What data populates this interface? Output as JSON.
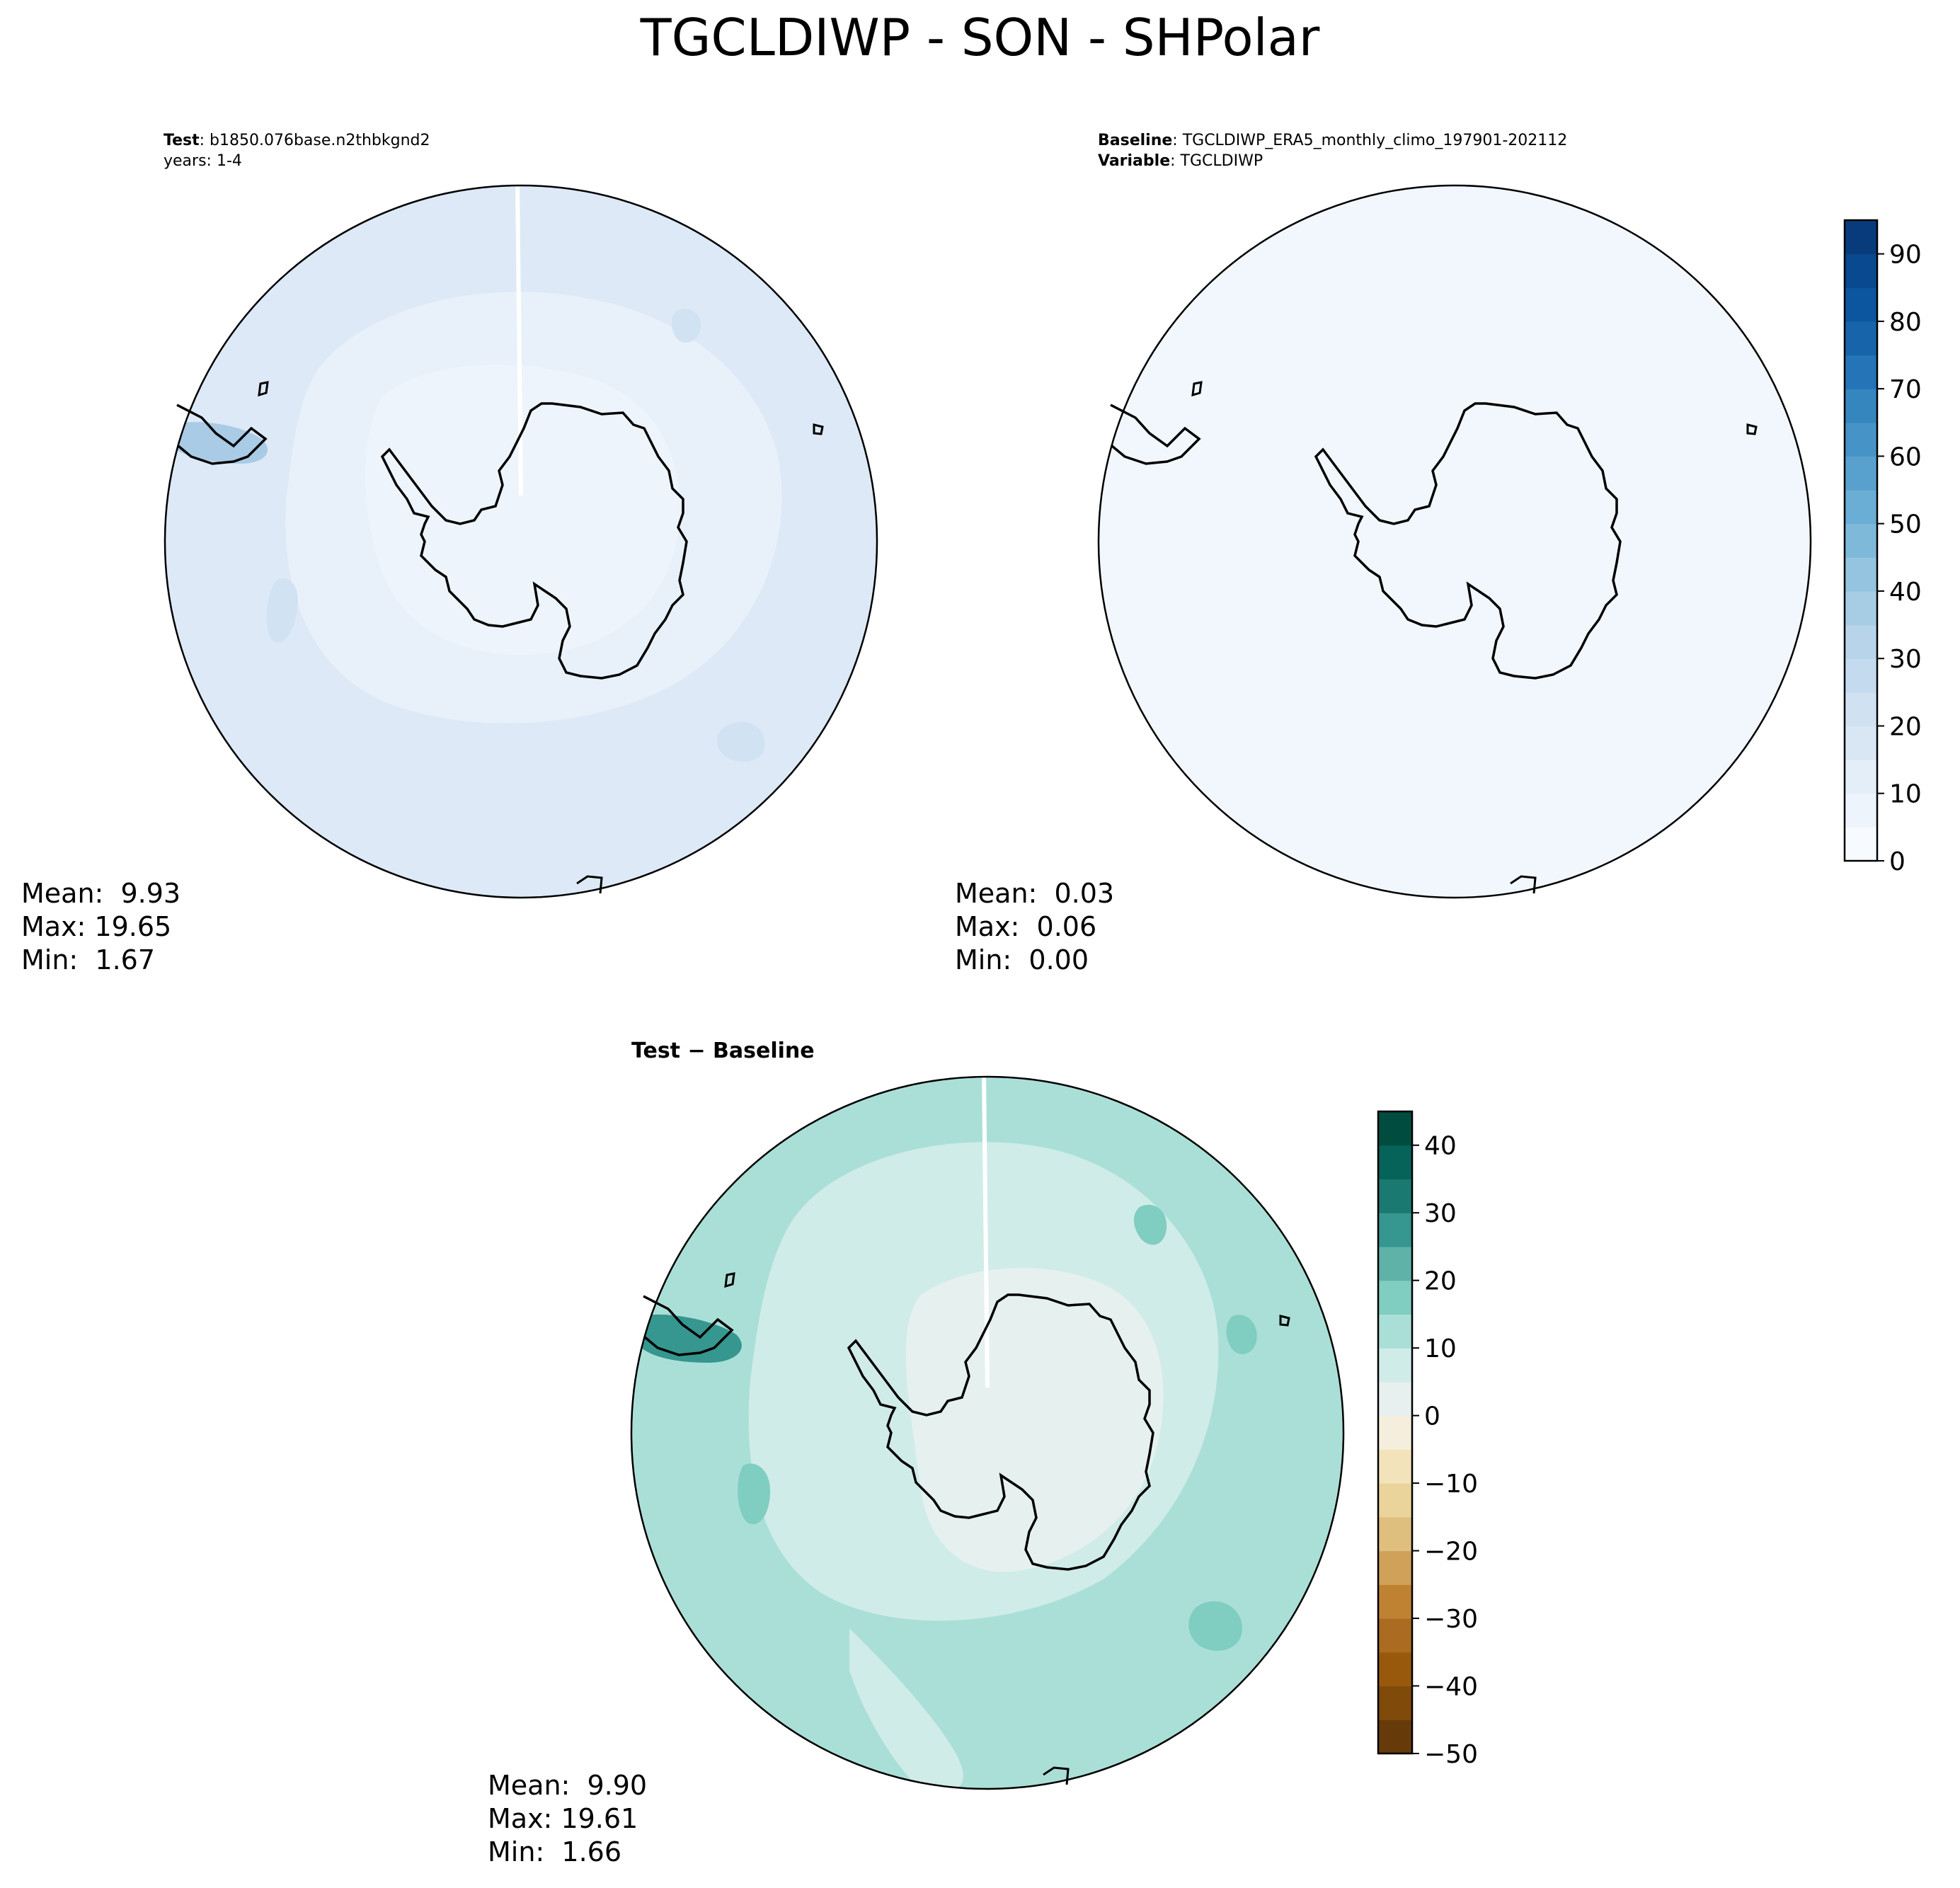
{
  "figure": {
    "title": "TGCLDIWP - SON - SHPolar"
  },
  "colors": {
    "test_field_base": "#dde9f6",
    "test_field_light": "#e8f1fa",
    "test_field_lighter": "#eef4fb",
    "test_field_dark": "#d1e2f2",
    "baseline_field": "#f2f7fd",
    "diff_field_base": "#aadfd7",
    "diff_field_light": "#d0ece8",
    "diff_field_lighter": "#e6f1ef",
    "diff_field_dark": "#80cdc1",
    "continent_outline": "#000000"
  },
  "panels": [
    {
      "id": "test",
      "header_line1_bold": "Test",
      "header_line1_text": ": b1850.076base.n2thbkgnd2",
      "header_line2_text": "years: 1-4",
      "stats": {
        "mean": "Mean:  9.93",
        "max": "Max: 19.65",
        "min": "Min:  1.67"
      }
    },
    {
      "id": "baseline",
      "header_line1_bold": "Baseline",
      "header_line1_text": ": TGCLDIWP_ERA5_monthly_climo_197901-202112",
      "header_line2_bold": "Variable",
      "header_line2_text": ": TGCLDIWP",
      "stats": {
        "mean": "Mean:  0.03",
        "max": "Max:  0.06",
        "min": "Min:  0.00"
      }
    },
    {
      "id": "difference",
      "header_bold": "Test − Baseline",
      "stats": {
        "mean": "Mean:  9.90",
        "max": "Max: 19.61",
        "min": "Min:  1.66"
      }
    }
  ],
  "chart_data": [
    {
      "type": "heatmap",
      "projection": "south polar stereographic",
      "panel": "test",
      "colorbar": "shared with baseline (Blues)",
      "summary": {
        "mean": 9.93,
        "max": 19.65,
        "min": 1.67
      }
    },
    {
      "type": "heatmap",
      "projection": "south polar stereographic",
      "panel": "baseline",
      "colorbar": {
        "cmap": "Blues",
        "ticks": [
          "0",
          "10",
          "20",
          "30",
          "40",
          "50",
          "60",
          "70",
          "80",
          "90"
        ],
        "levels": [
          0,
          5,
          10,
          15,
          20,
          25,
          30,
          35,
          40,
          45,
          50,
          55,
          60,
          65,
          70,
          75,
          80,
          85,
          90,
          95
        ],
        "colors": [
          "#f7fbff",
          "#edf4fc",
          "#e3eef9",
          "#d9e7f5",
          "#d0e1f2",
          "#c4daee",
          "#b7d4ea",
          "#a6cde4",
          "#94c4df",
          "#7fb9da",
          "#6aaed6",
          "#58a1cf",
          "#4694c7",
          "#3585bf",
          "#2474b7",
          "#1764ab",
          "#0c569f",
          "#084990",
          "#083b7c"
        ]
      },
      "summary": {
        "mean": 0.03,
        "max": 0.06,
        "min": 0.0
      }
    },
    {
      "type": "heatmap",
      "projection": "south polar stereographic",
      "panel": "difference",
      "colorbar": {
        "cmap": "BrBG",
        "ticks": [
          "40",
          "30",
          "20",
          "10",
          "0",
          "−10",
          "−20",
          "−30",
          "−40",
          "−50"
        ],
        "levels": [
          -50,
          -45,
          -40,
          -35,
          -30,
          -25,
          -20,
          -15,
          -10,
          -5,
          0,
          5,
          10,
          15,
          20,
          25,
          30,
          35,
          40,
          45
        ],
        "colors": [
          "#673a0a",
          "#7f4a0a",
          "#99590d",
          "#ab6b20",
          "#bf8233",
          "#d0a158",
          "#dfbf7d",
          "#ebd49b",
          "#f3e3ba",
          "#f5eedc",
          "#e7f0ee",
          "#d0ece8",
          "#aadfd7",
          "#80cdc1",
          "#5fb2a7",
          "#35978f",
          "#1a7a71",
          "#066359",
          "#004d40"
        ]
      },
      "summary": {
        "mean": 9.9,
        "max": 19.61,
        "min": 1.66
      }
    }
  ]
}
